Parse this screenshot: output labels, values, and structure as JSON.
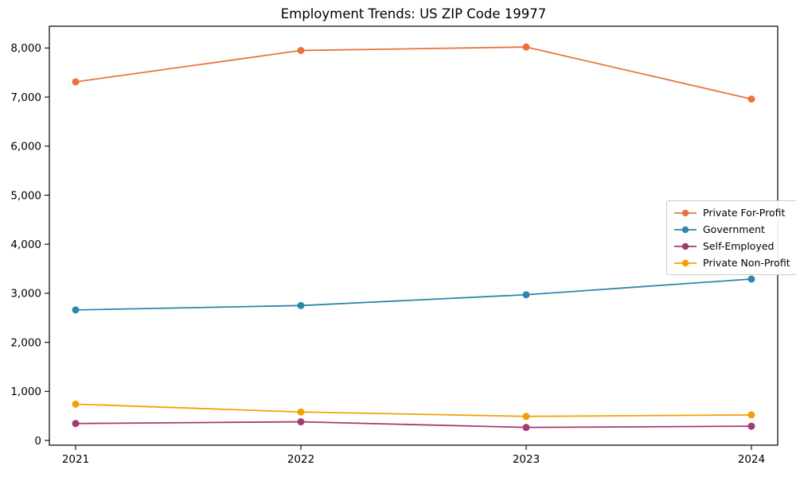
{
  "window": {
    "background_color": "#ffffff",
    "text_color": "#000000"
  },
  "chart_data": {
    "type": "line",
    "title": "Employment Trends: US ZIP Code 19977",
    "xlabel": "",
    "ylabel": "",
    "categories": [
      "2021",
      "2022",
      "2023",
      "2024"
    ],
    "series": [
      {
        "name": "Private For-Profit",
        "color": "#E8743B",
        "values": [
          7310,
          7950,
          8020,
          6960
        ]
      },
      {
        "name": "Government",
        "color": "#2E86AB",
        "values": [
          2660,
          2750,
          2970,
          3290
        ]
      },
      {
        "name": "Self-Employed",
        "color": "#A23B72",
        "values": [
          345,
          380,
          265,
          290
        ]
      },
      {
        "name": "Private Non-Profit",
        "color": "#F2A104",
        "values": [
          740,
          580,
          490,
          520
        ]
      }
    ],
    "y_ticks": [
      0,
      1000,
      2000,
      3000,
      4000,
      5000,
      6000,
      7000,
      8000
    ],
    "y_tick_labels": [
      "0",
      "1,000",
      "2,000",
      "3,000",
      "4,000",
      "5,000",
      "6,000",
      "7,000",
      "8,000"
    ],
    "ylim": [
      -130,
      8440
    ],
    "grid": false,
    "marker": "circle",
    "legend_position": "center right",
    "axis_color": "#000000"
  }
}
